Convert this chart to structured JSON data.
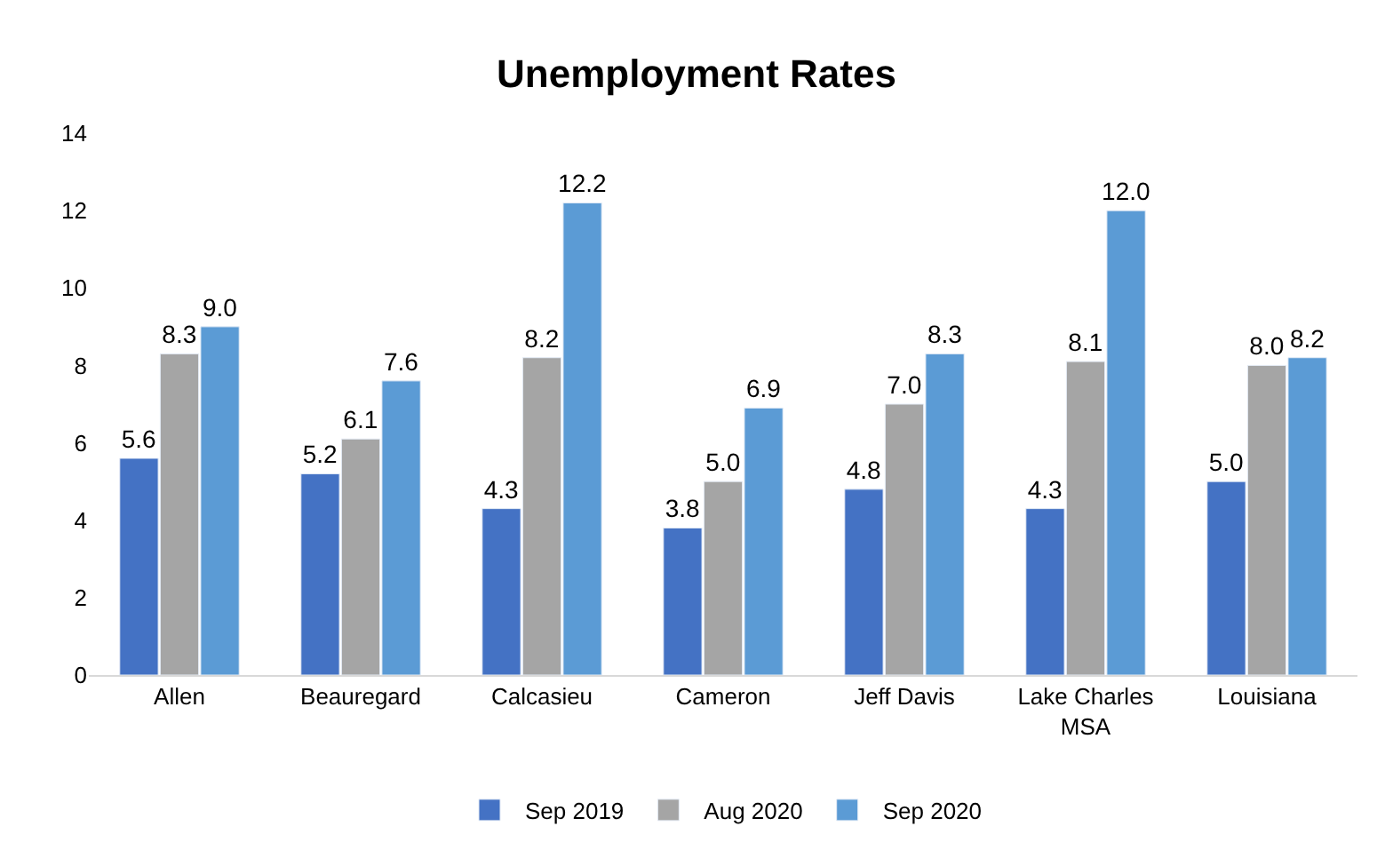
{
  "chart_data": {
    "type": "bar",
    "title": "Unemployment Rates",
    "categories": [
      "Allen",
      "Beauregard",
      "Calcasieu",
      "Cameron",
      "Jeff Davis",
      "Lake Charles MSA",
      "Louisiana"
    ],
    "series": [
      {
        "name": "Sep 2019",
        "color": "#4472c4",
        "values": [
          5.6,
          5.2,
          4.3,
          3.8,
          4.8,
          4.3,
          5.0
        ],
        "value_labels": [
          "5.6",
          "5.2",
          "4.3",
          "3.8",
          "4.8",
          "4.3",
          "5.0"
        ]
      },
      {
        "name": "Aug 2020",
        "color": "#a5a5a5",
        "values": [
          8.3,
          6.1,
          8.2,
          5.0,
          7.0,
          8.1,
          8.0
        ],
        "value_labels": [
          "8.3",
          "6.1",
          "8.2",
          "5.0",
          "7.0",
          "8.1",
          "8.0"
        ]
      },
      {
        "name": "Sep 2020",
        "color": "#5b9bd5",
        "values": [
          9.0,
          7.6,
          12.2,
          6.9,
          8.3,
          12.0,
          8.2
        ],
        "value_labels": [
          "9.0",
          "7.6",
          "12.2",
          "6.9",
          "8.3",
          "12.0",
          "8.2"
        ]
      }
    ],
    "ylim": [
      0,
      14
    ],
    "yticks": [
      0,
      2,
      4,
      6,
      8,
      10,
      12,
      14
    ],
    "legend": "bottom"
  }
}
